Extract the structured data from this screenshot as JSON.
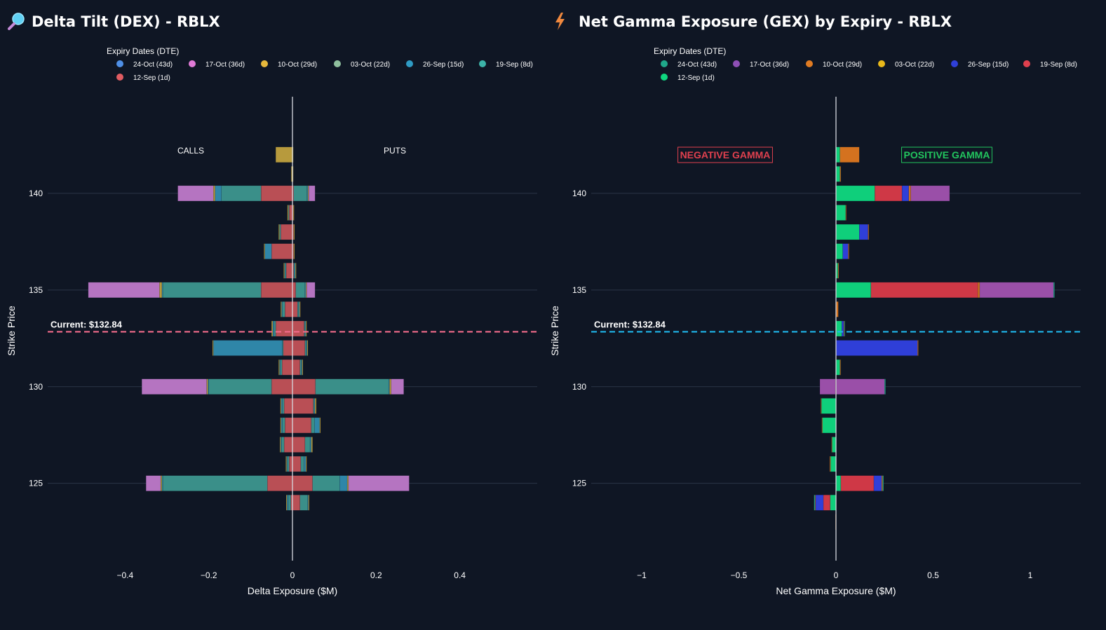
{
  "chart_data": [
    {
      "type": "bar",
      "orientation": "horizontal",
      "stacked": true,
      "title": "Delta Tilt (DEX) - RBLX",
      "title_icon": "magnifier-icon",
      "legend_title": "Expiry Dates (DTE)",
      "legend": [
        {
          "name": "24-Oct (43d)",
          "color": "#4f8fe6"
        },
        {
          "name": "17-Oct (36d)",
          "color": "#e07ad6"
        },
        {
          "name": "10-Oct (29d)",
          "color": "#e7b83c"
        },
        {
          "name": "03-Oct (22d)",
          "color": "#8fbf9e"
        },
        {
          "name": "26-Sep (15d)",
          "color": "#2f9bc4"
        },
        {
          "name": "19-Sep (8d)",
          "color": "#3cb3a8"
        },
        {
          "name": "12-Sep (1d)",
          "color": "#e05c62"
        }
      ],
      "xlabel": "Delta Exposure ($M)",
      "ylabel": "Strike Price",
      "xlim": [
        -0.585,
        0.585
      ],
      "ylim": [
        121.0,
        145.0
      ],
      "x_ticks": [
        -0.4,
        -0.2,
        0,
        0.2,
        0.4
      ],
      "x_tick_labels": [
        "−0.4",
        "−0.2",
        "0",
        "0.2",
        "0.4"
      ],
      "y_ticks": [
        125,
        130,
        135,
        140
      ],
      "y_tick_labels": [
        "125",
        "130",
        "135",
        "140"
      ],
      "side_labels": {
        "left": "CALLS",
        "right": "PUTS"
      },
      "current_price": 132.84,
      "current_label": "Current: $132.84",
      "current_line_color": "#f06b8a",
      "series": [
        {
          "name": "12-Sep (1d)",
          "color": "#b94f55",
          "strikes": [
            124,
            125,
            126,
            127,
            128,
            129,
            130,
            131,
            132,
            133,
            134,
            135,
            136,
            137,
            138,
            139,
            140
          ],
          "neg": [
            -0.004,
            -0.06,
            -0.008,
            -0.02,
            -0.018,
            -0.02,
            -0.05,
            -0.025,
            -0.022,
            -0.04,
            -0.018,
            -0.075,
            -0.015,
            -0.05,
            -0.028,
            -0.008,
            -0.075
          ],
          "pos": [
            0.018,
            0.048,
            0.02,
            0.03,
            0.045,
            0.05,
            0.055,
            0.018,
            0.03,
            0.028,
            0.012,
            0.008,
            0.003,
            0.003,
            0.003,
            0.002,
            0.003
          ]
        },
        {
          "name": "19-Sep (8d)",
          "color": "#3a8f89",
          "strikes": [
            124,
            125,
            126,
            127,
            128,
            129,
            130,
            131,
            132,
            133,
            134,
            135,
            136,
            137,
            138,
            139,
            140
          ],
          "neg": [
            -0.006,
            -0.25,
            -0.004,
            -0.006,
            -0.006,
            -0.004,
            -0.15,
            -0.004,
            -0.002,
            -0.004,
            -0.006,
            -0.235,
            -0.002,
            0,
            -0.003,
            -0.002,
            -0.095
          ],
          "pos": [
            0.018,
            0.065,
            0.008,
            0.012,
            0.008,
            0.002,
            0.175,
            0.003,
            0.003,
            0.002,
            0.003,
            0.022,
            0.002,
            0,
            0,
            0,
            0.032
          ]
        },
        {
          "name": "26-Sep (15d)",
          "color": "#2f86a8",
          "strikes": [
            124,
            125,
            126,
            127,
            128,
            129,
            130,
            131,
            132,
            133,
            134,
            135,
            136,
            137,
            138,
            139,
            140
          ],
          "neg": [
            -0.003,
            -0.002,
            -0.002,
            -0.002,
            -0.003,
            -0.003,
            -0.002,
            -0.002,
            -0.165,
            -0.003,
            -0.002,
            -0.002,
            -0.002,
            -0.016,
            0,
            0,
            -0.015
          ],
          "pos": [
            0.002,
            0.018,
            0.004,
            0.003,
            0.012,
            0.002,
            0.002,
            0.002,
            0.002,
            0.002,
            0.002,
            0.002,
            0.002,
            0,
            0,
            0,
            0.002
          ]
        },
        {
          "name": "10-Oct (29d)",
          "color": "#b79a3d",
          "strikes": [
            124,
            125,
            126,
            127,
            128,
            129,
            130,
            131,
            132,
            133,
            134,
            135,
            136,
            137,
            138,
            139,
            140,
            141,
            142
          ],
          "neg": [
            -0.002,
            -0.003,
            -0.002,
            -0.002,
            -0.002,
            -0.002,
            -0.003,
            -0.002,
            -0.002,
            -0.003,
            -0.002,
            -0.006,
            -0.002,
            -0.002,
            -0.002,
            -0.002,
            -0.004,
            -0.003,
            -0.04
          ],
          "pos": [
            0.002,
            0.003,
            0.002,
            0.003,
            0.002,
            0.003,
            0.004,
            0.002,
            0.002,
            0.002,
            0.002,
            0.002,
            0.002,
            0.002,
            0.002,
            0.002,
            0.002,
            0.002,
            0.002
          ]
        },
        {
          "name": "17-Oct (36d)",
          "color": "#b574c1",
          "strikes": [
            125,
            130,
            135,
            140
          ],
          "neg": [
            -0.035,
            -0.155,
            -0.17,
            -0.085
          ],
          "pos": [
            0.145,
            0.03,
            0.02,
            0.015
          ]
        }
      ]
    },
    {
      "type": "bar",
      "orientation": "horizontal",
      "stacked": true,
      "title": "Net Gamma Exposure (GEX) by Expiry - RBLX",
      "title_icon": "lightning-icon",
      "legend_title": "Expiry Dates (DTE)",
      "legend": [
        {
          "name": "24-Oct (43d)",
          "color": "#1fa88a"
        },
        {
          "name": "17-Oct (36d)",
          "color": "#8e4fb5"
        },
        {
          "name": "10-Oct (29d)",
          "color": "#e07b22"
        },
        {
          "name": "03-Oct (22d)",
          "color": "#e8b81a"
        },
        {
          "name": "26-Sep (15d)",
          "color": "#2f3fd8"
        },
        {
          "name": "19-Sep (8d)",
          "color": "#e0404e"
        },
        {
          "name": "12-Sep (1d)",
          "color": "#0fd67f"
        }
      ],
      "xlabel": "Net Gamma Exposure ($M)",
      "ylabel": "Strike Price",
      "xlim": [
        -1.26,
        1.26
      ],
      "ylim": [
        121.0,
        145.0
      ],
      "x_ticks": [
        -1,
        -0.5,
        0,
        0.5,
        1
      ],
      "x_tick_labels": [
        "−1",
        "−0.5",
        "0",
        "0.5",
        "1"
      ],
      "y_ticks": [
        125,
        130,
        135,
        140
      ],
      "y_tick_labels": [
        "125",
        "130",
        "135",
        "140"
      ],
      "side_labels": {
        "left": "NEGATIVE GAMMA",
        "right": "POSITIVE GAMMA",
        "left_color": "#e0404e",
        "right_color": "#22c55e"
      },
      "current_price": 132.84,
      "current_label": "Current: $132.84",
      "current_line_color": "#1fb6ea",
      "series": [
        {
          "name": "12-Sep (1d)",
          "color": "#0fcf7b",
          "strikes": [
            124,
            125,
            126,
            127,
            128,
            129,
            130,
            131,
            132,
            133,
            134,
            135,
            136,
            137,
            138,
            139,
            140,
            141,
            142
          ],
          "neg": [
            -0.03,
            0,
            -0.028,
            -0.02,
            -0.07,
            -0.075,
            0,
            0,
            0,
            0,
            0,
            0,
            0,
            0,
            0,
            0,
            0,
            0,
            0
          ],
          "pos": [
            0,
            0.025,
            0,
            0,
            0,
            0,
            0,
            0.02,
            0,
            0.03,
            0,
            0.18,
            0.01,
            0.035,
            0.12,
            0.05,
            0.2,
            0.02,
            0.02
          ]
        },
        {
          "name": "19-Sep (8d)",
          "color": "#cf3846",
          "strikes": [
            124,
            125,
            135,
            140
          ],
          "neg": [
            -0.035,
            0,
            0,
            0
          ],
          "pos": [
            0,
            0.17,
            0.55,
            0.14
          ]
        },
        {
          "name": "26-Sep (15d)",
          "color": "#2f3fd8",
          "strikes": [
            123,
            124,
            125,
            132,
            133,
            137,
            138,
            140
          ],
          "neg": [
            0,
            -0.04,
            0,
            0,
            0,
            0,
            0,
            0
          ],
          "pos": [
            0,
            0,
            0.04,
            0.42,
            0.01,
            0.028,
            0.045,
            0.035
          ]
        },
        {
          "name": "10-Oct (29d)",
          "color": "#d4721f",
          "strikes": [
            123,
            124,
            125,
            126,
            127,
            128,
            129,
            130,
            131,
            132,
            133,
            134,
            135,
            136,
            137,
            138,
            139,
            140,
            141,
            142
          ],
          "neg": [
            -0.003,
            -0.003,
            0,
            -0.004,
            -0.003,
            -0.003,
            -0.003,
            -0.003,
            0,
            0,
            0,
            0,
            0,
            0,
            0,
            0,
            0,
            0,
            0,
            0
          ],
          "pos": [
            0,
            0,
            0.005,
            0,
            0,
            0,
            0,
            0,
            0.004,
            0.004,
            0.003,
            0.012,
            0.01,
            0.004,
            0.004,
            0.004,
            0.003,
            0.01,
            0.005,
            0.1
          ]
        },
        {
          "name": "17-Oct (36d)",
          "color": "#9a4fa8",
          "strikes": [
            130,
            135,
            140
          ],
          "neg": [
            -0.08,
            0,
            0
          ],
          "pos": [
            0.25,
            0.38,
            0.2
          ]
        },
        {
          "name": "24-Oct (43d)",
          "color": "#1fa88a",
          "strikes": [
            124,
            125,
            130,
            133,
            135
          ],
          "neg": [
            -0.005,
            0,
            0,
            0,
            0
          ],
          "pos": [
            0,
            0.005,
            0.005,
            0.003,
            0.005
          ]
        }
      ]
    }
  ]
}
